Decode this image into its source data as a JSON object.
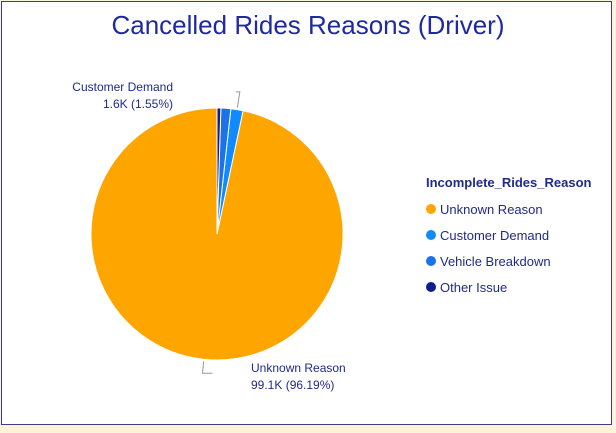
{
  "chart_data": {
    "type": "pie",
    "title": "Cancelled Rides Reasons (Driver)",
    "legend_title": "Incomplete_Rides_Reason",
    "legend_position": "right",
    "categories": [
      "Unknown Reason",
      "Customer Demand",
      "Vehicle Breakdown",
      "Other Issue"
    ],
    "values": [
      99.1,
      1.6,
      1.3,
      0.5
    ],
    "percentages": [
      96.19,
      1.55,
      1.26,
      0.48
    ],
    "colors": [
      "#ffa500",
      "#0f8bff",
      "#1a73e8",
      "#131a8c"
    ],
    "data_labels": [
      {
        "category": "Unknown Reason",
        "name": "Unknown Reason",
        "value": "99.1K (96.19%)"
      },
      {
        "category": "Customer Demand",
        "name": "Customer Demand",
        "value": "1.6K (1.55%)"
      }
    ]
  }
}
